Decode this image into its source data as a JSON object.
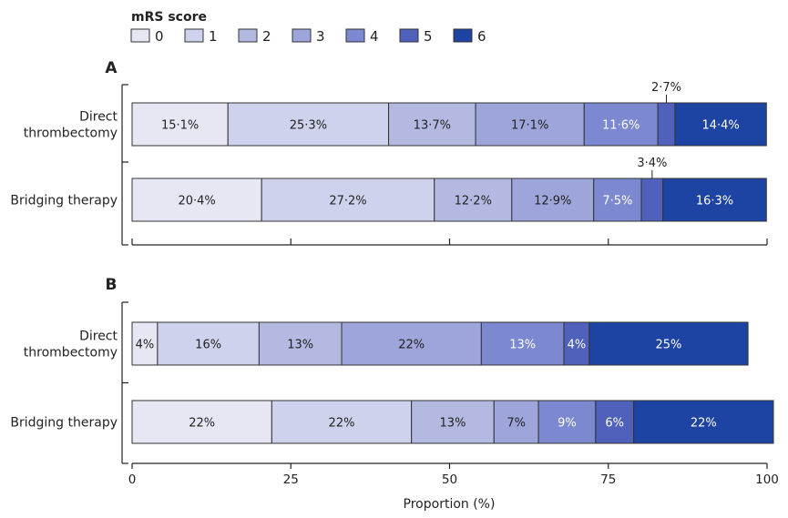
{
  "chart_data": {
    "type": "bar",
    "orientation": "horizontal",
    "stacked": true,
    "xlabel": "Proportion (%)",
    "xlim": [
      0,
      100
    ],
    "xticks": [
      "0",
      "25",
      "50",
      "75",
      "100"
    ],
    "legend": {
      "title": "mRS score",
      "position": "top-left",
      "labels": [
        "0",
        "1",
        "2",
        "3",
        "4",
        "5",
        "6"
      ]
    },
    "colors": [
      "#e6e7f3",
      "#cfd2ec",
      "#b4b9e2",
      "#9da5da",
      "#7c88cf",
      "#4f61bb",
      "#1d44a3"
    ],
    "panels": [
      {
        "label": "A",
        "categories": [
          {
            "name_lines": [
              "Direct",
              "thrombectomy"
            ],
            "values": [
              15.1,
              25.3,
              13.7,
              17.1,
              11.6,
              2.7,
              14.4
            ],
            "labels": [
              "15·1%",
              "25·3%",
              "13·7%",
              "17·1%",
              "11·6%",
              "2·7%",
              "14·4%"
            ],
            "callout_index": 5
          },
          {
            "name_lines": [
              "Bridging therapy"
            ],
            "values": [
              20.4,
              27.2,
              12.2,
              12.9,
              7.5,
              3.4,
              16.3
            ],
            "labels": [
              "20·4%",
              "27·2%",
              "12·2%",
              "12·9%",
              "7·5%",
              "3·4%",
              "16·3%"
            ],
            "callout_index": 5
          }
        ]
      },
      {
        "label": "B",
        "categories": [
          {
            "name_lines": [
              "Direct",
              "thrombectomy"
            ],
            "values": [
              4,
              16,
              13,
              22,
              13,
              4,
              25
            ],
            "labels": [
              "4%",
              "16%",
              "13%",
              "22%",
              "13%",
              "4%",
              "25%"
            ],
            "callout_index": null
          },
          {
            "name_lines": [
              "Bridging therapy"
            ],
            "values": [
              22,
              22,
              13,
              7,
              9,
              6,
              22
            ],
            "labels": [
              "22%",
              "22%",
              "13%",
              "7%",
              "9%",
              "6%",
              "22%"
            ],
            "callout_index": null
          }
        ]
      }
    ]
  }
}
